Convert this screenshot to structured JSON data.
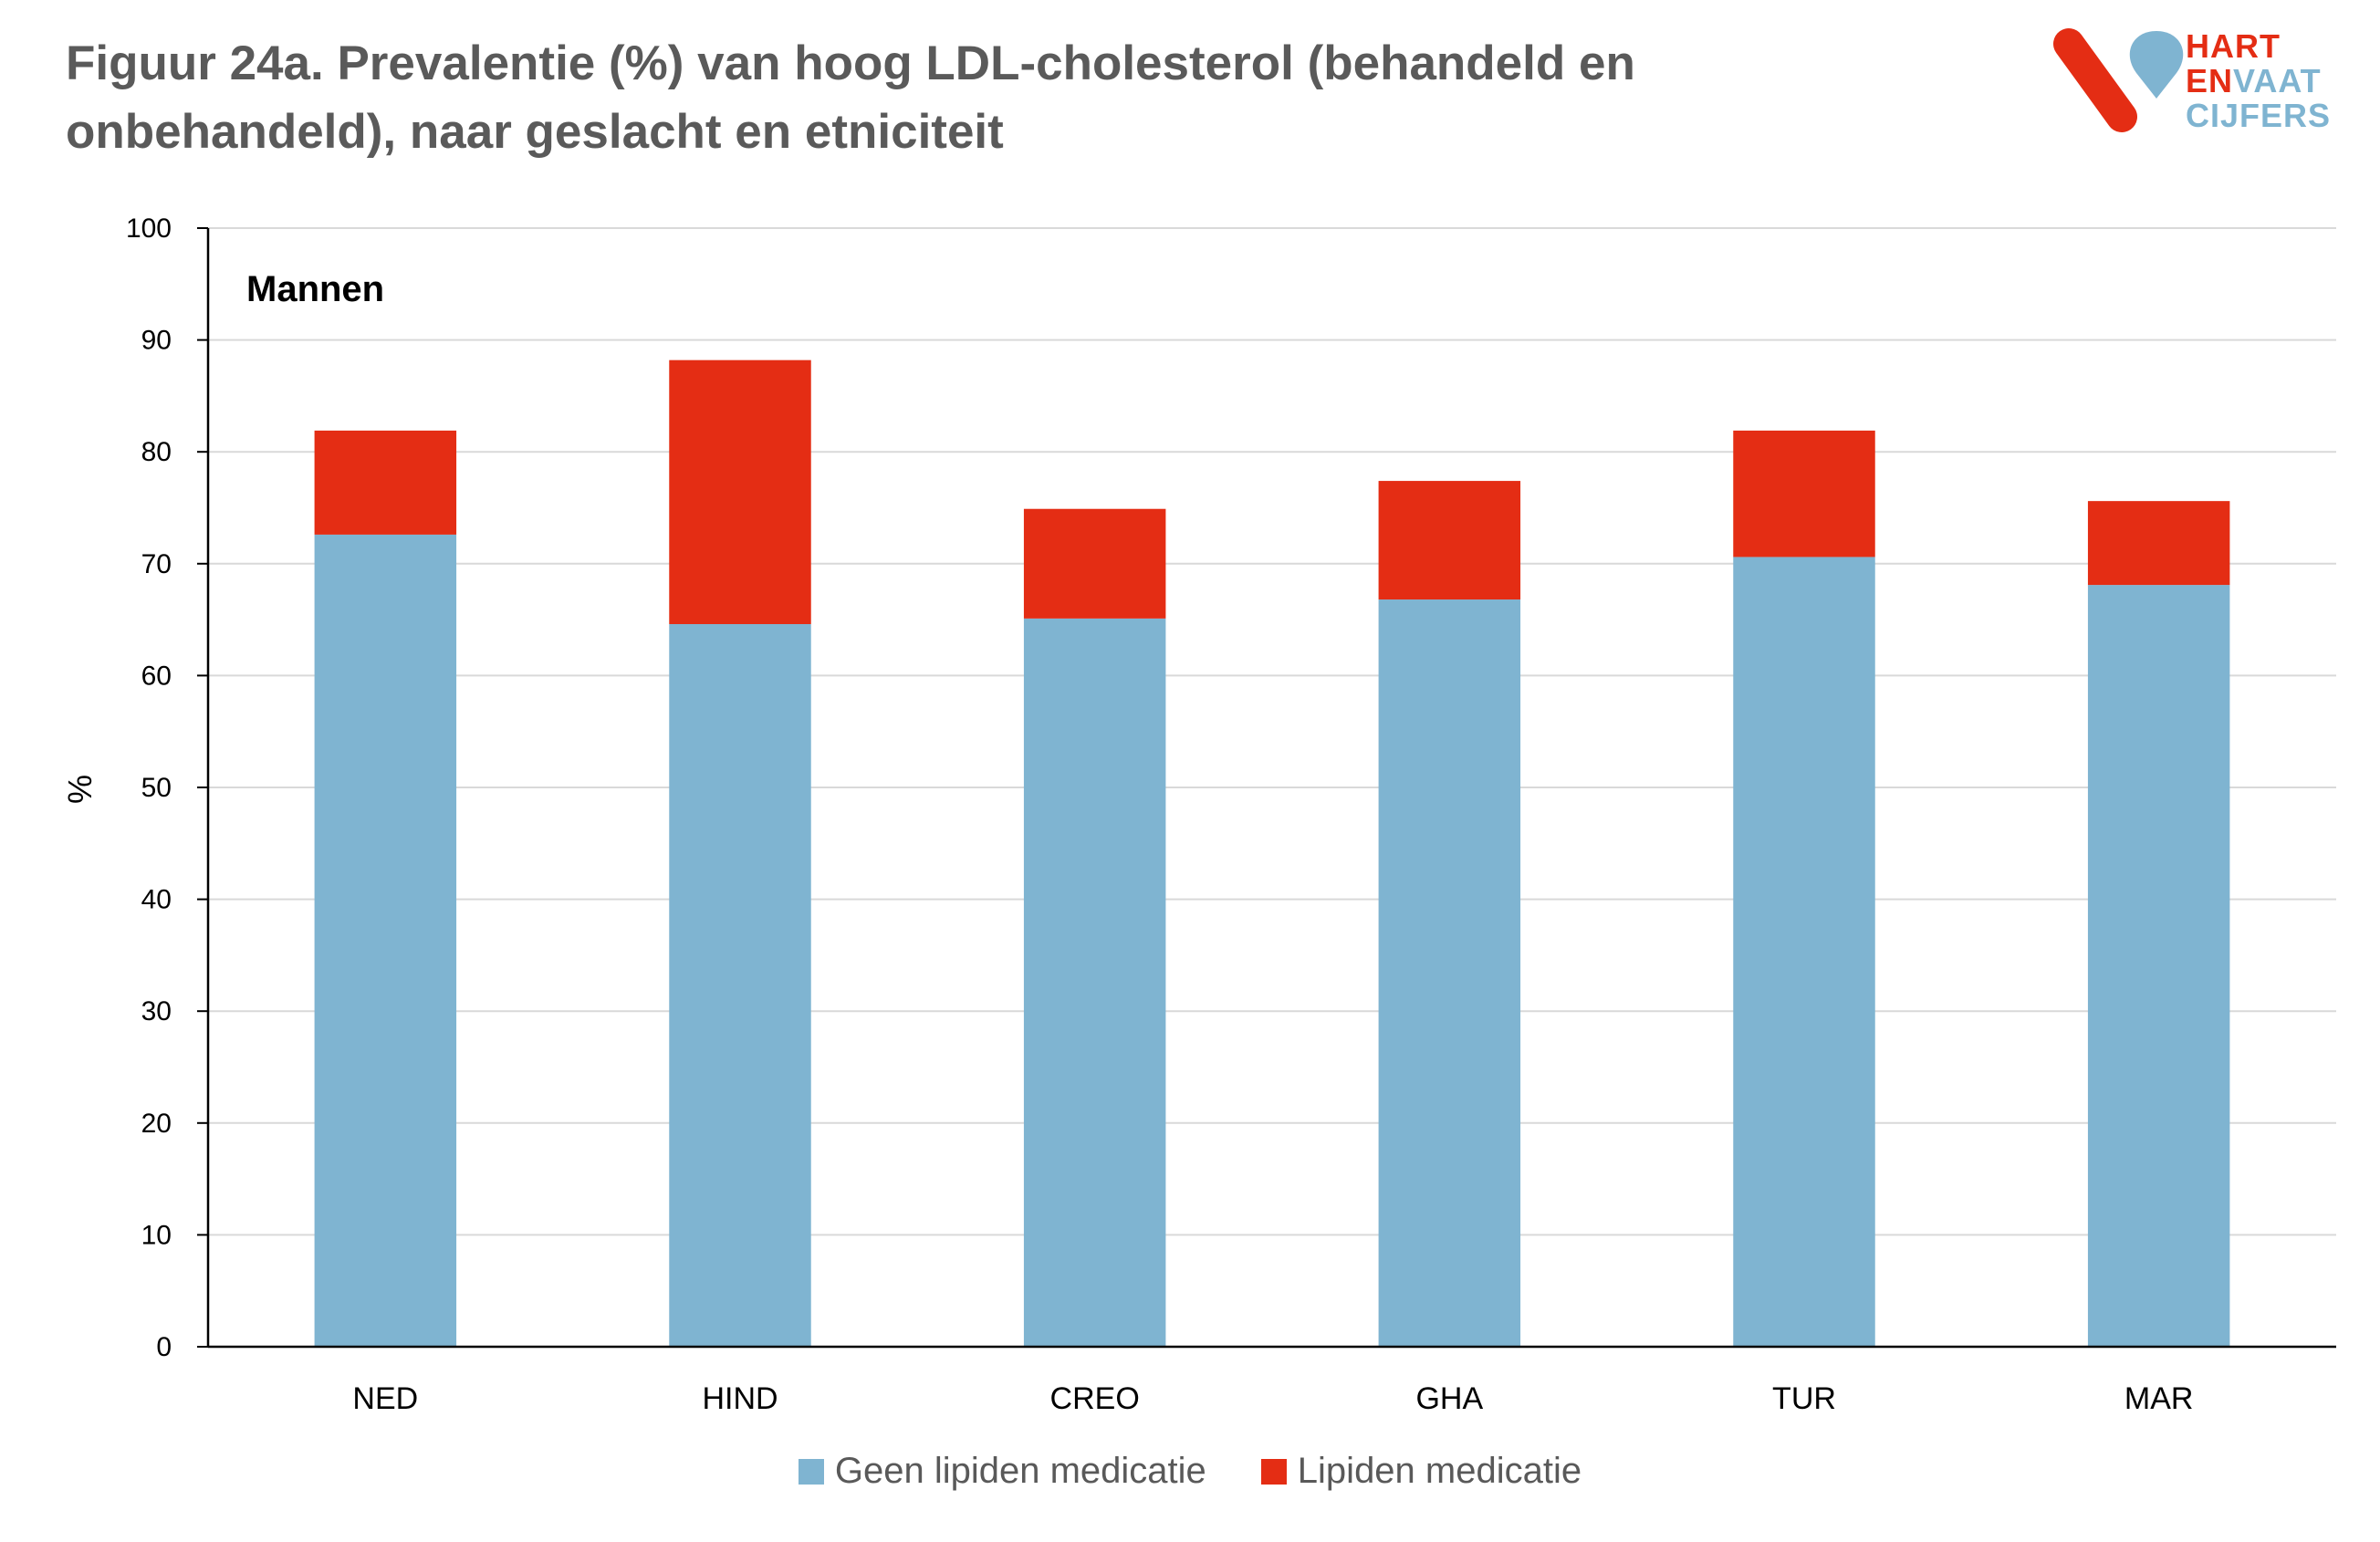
{
  "title": {
    "line1": "Figuur 24a. Prevalentie (%) van hoog LDL-cholesterol (behandeld en",
    "line2": "onbehandeld), naar geslacht en etniciteit"
  },
  "logo": {
    "line1": "HART",
    "line2a": "EN",
    "line2b": "VAAT",
    "line3": "CIJFERS"
  },
  "colors": {
    "geen": "#7fb4d1",
    "lipiden": "#e42d14",
    "title": "#5a5a5a",
    "grid": "#d9d9d9"
  },
  "chart_data": {
    "type": "bar",
    "stacked": true,
    "panel_label": "Mannen",
    "ylabel": "%",
    "xlabel": "",
    "ylim": [
      0,
      100
    ],
    "yticks": [
      0,
      10,
      20,
      30,
      40,
      50,
      60,
      70,
      80,
      90,
      100
    ],
    "grid": true,
    "legend_position": "bottom",
    "categories": [
      "NED",
      "HIND",
      "CREO",
      "GHA",
      "TUR",
      "MAR"
    ],
    "series": [
      {
        "name": "Geen lipiden medicatie",
        "values": [
          72.6,
          64.6,
          65.1,
          66.8,
          70.6,
          68.1
        ]
      },
      {
        "name": "Lipiden medicatie",
        "values": [
          9.3,
          23.6,
          9.8,
          10.6,
          11.3,
          7.5
        ]
      }
    ]
  }
}
